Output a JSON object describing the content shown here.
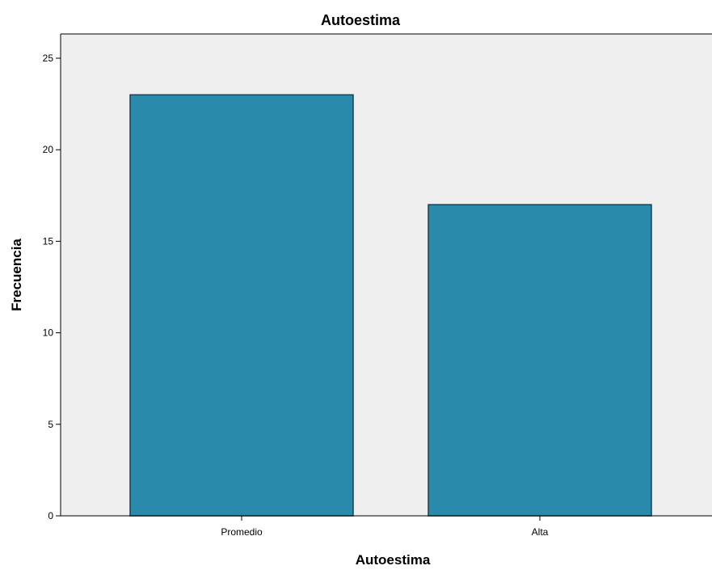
{
  "chart_data": {
    "type": "bar",
    "title": "Autoestima",
    "xlabel": "Autoestima",
    "ylabel": "Frecuencia",
    "categories": [
      "Promedio",
      "Alta"
    ],
    "values": [
      23,
      17
    ],
    "ylim": [
      0,
      25
    ],
    "yticks": [
      "0",
      "5",
      "10",
      "15",
      "20",
      "25"
    ],
    "grid": false,
    "legend": "none",
    "colors": {
      "bar_fill": "#2a8aab",
      "bar_stroke": "#1f3f4a",
      "plot_background": "#efefef",
      "axis": "#000000"
    }
  }
}
